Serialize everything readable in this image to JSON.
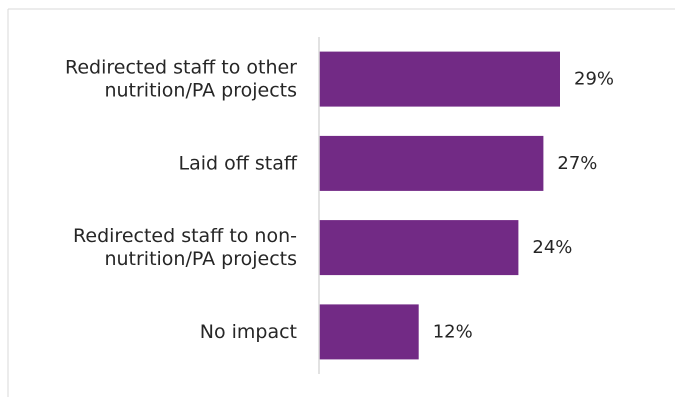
{
  "chart_data": {
    "type": "bar",
    "orientation": "horizontal",
    "categories": [
      [
        "Redirected staff to other",
        "nutrition/PA projects"
      ],
      [
        "Laid off staff"
      ],
      [
        "Redirected staff to non-",
        "nutrition/PA projects"
      ],
      [
        "No impact"
      ]
    ],
    "values": [
      29,
      27,
      24,
      12
    ],
    "value_labels": [
      "29%",
      "27%",
      "24%",
      "12%"
    ],
    "unit": "%",
    "xlim": [
      0,
      40
    ],
    "grid": false,
    "legend": "none",
    "title": "",
    "xlabel": "",
    "ylabel": ""
  },
  "colors": {
    "bar": "#722a85",
    "axis": "#d9d9d9",
    "frame": "#d9d9d9",
    "text": "#262626"
  }
}
